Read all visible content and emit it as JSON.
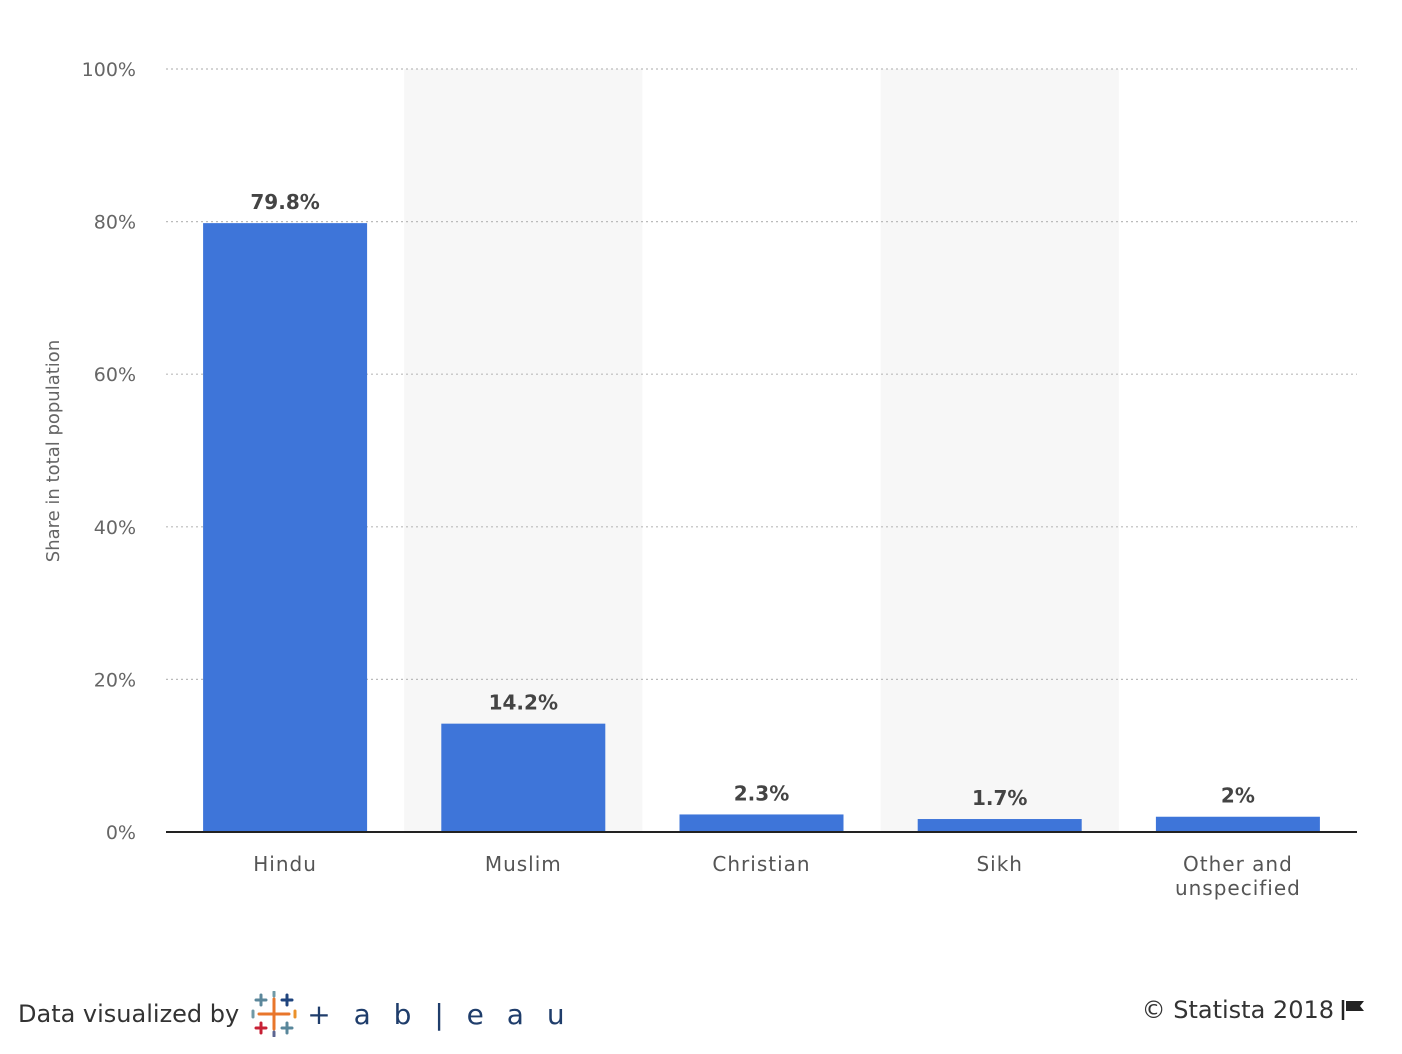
{
  "chart_data": {
    "type": "bar",
    "categories": [
      "Hindu",
      "Muslim",
      "Christian",
      "Sikh",
      "Other and unspecified"
    ],
    "values": [
      79.8,
      14.2,
      2.3,
      1.7,
      2
    ],
    "data_labels": [
      "79.8%",
      "14.2%",
      "2.3%",
      "1.7%",
      "2%"
    ],
    "ylabel": "Share in total population",
    "ylim": [
      0,
      100
    ],
    "yticks": [
      0,
      20,
      40,
      60,
      80,
      100
    ],
    "ytick_labels": [
      "0%",
      "20%",
      "40%",
      "60%",
      "80%",
      "100%"
    ],
    "grid": true,
    "bar_color": "#3e75d9",
    "band_color": "#f7f7f7"
  },
  "footer": {
    "data_visualized_by": "Data visualized by",
    "tableau_wordmark": "+ a b | e a u",
    "copyright": "© Statista 2018",
    "flag_icon": "flag-icon",
    "tableau_icon": "tableau-logo-icon"
  }
}
